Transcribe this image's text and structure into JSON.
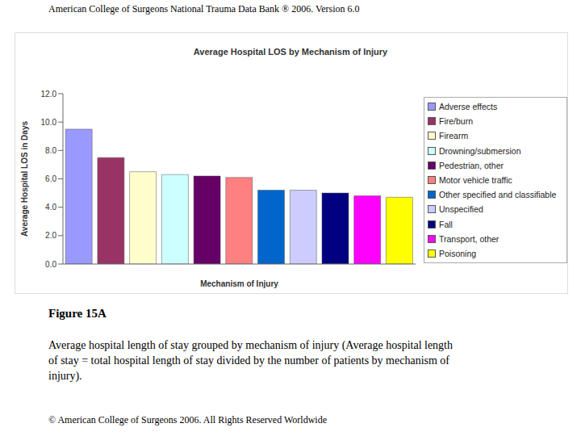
{
  "header": "American College of Surgeons National Trauma Data Bank ® 2006. Version 6.0",
  "chart_data": {
    "type": "bar",
    "title": "Average Hospital LOS by Mechanism of Injury",
    "x_label": "Mechanism of Injury",
    "y_label": "Average Hospital LOS in Days",
    "categories": [
      "Adverse effects",
      "Fire/burn",
      "Firearm",
      "Drowning/submersion",
      "Pedestrian, other",
      "Motor vehicle traffic",
      "Other specified and classifiable",
      "Unspecified",
      "Fall",
      "Transport, other",
      "Poisoning"
    ],
    "values": [
      9.5,
      7.5,
      6.5,
      6.3,
      6.2,
      6.1,
      5.2,
      5.2,
      5.0,
      4.8,
      4.7
    ],
    "colors": [
      "#9999ff",
      "#993366",
      "#ffffcc",
      "#ccffff",
      "#660066",
      "#ff8080",
      "#0066cc",
      "#ccccff",
      "#000080",
      "#ff00ff",
      "#ffff00"
    ],
    "ylim": [
      0,
      12
    ],
    "yticks": [
      {
        "value": 0,
        "label": "0.0"
      },
      {
        "value": 2,
        "label": "2.0"
      },
      {
        "value": 4,
        "label": "4.0"
      },
      {
        "value": 6,
        "label": "6.0"
      },
      {
        "value": 8,
        "label": "8.0"
      },
      {
        "value": 10,
        "label": "10.0"
      },
      {
        "value": 12,
        "label": "12.0"
      }
    ],
    "grid": false,
    "legend": "right",
    "tick_labels": "y"
  },
  "figure_label": "Figure 15A",
  "caption": "Average hospital length of stay grouped by mechanism of injury (Average hospital length of stay = total hospital length of stay divided by the number of patients by mechanism of injury).",
  "footer": "© American College of Surgeons 2006. All Rights Reserved Worldwide"
}
